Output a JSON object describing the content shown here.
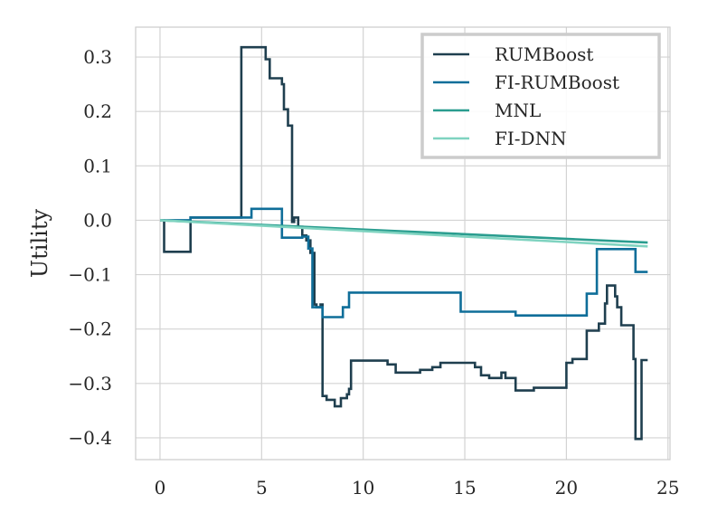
{
  "chart_data": {
    "type": "line",
    "title": "",
    "xlabel": "",
    "ylabel": "Utility",
    "xlim": [
      -1.2,
      25.1
    ],
    "ylim": [
      -0.44,
      0.355
    ],
    "grid": true,
    "legend_position": "top-right",
    "x_ticks": [
      0,
      5,
      10,
      15,
      20,
      25
    ],
    "x_tick_labels": [
      "0",
      "5",
      "10",
      "15",
      "20",
      "25"
    ],
    "y_ticks": [
      0.3,
      0.2,
      0.1,
      0.0,
      -0.1,
      -0.2,
      -0.3,
      -0.4
    ],
    "y_tick_labels": [
      "0.3",
      "0.2",
      "0.1",
      "0.0",
      "−0.1",
      "−0.2",
      "−0.3",
      "−0.4"
    ],
    "series": [
      {
        "name": "RUMBoost",
        "color": "#1f3f4f",
        "step": true,
        "points": [
          [
            0,
            0
          ],
          [
            0.2,
            -0.058
          ],
          [
            1.5,
            0.005
          ],
          [
            4.0,
            0.318
          ],
          [
            5.2,
            0.296
          ],
          [
            5.4,
            0.261
          ],
          [
            6.0,
            0.25
          ],
          [
            6.1,
            0.204
          ],
          [
            6.3,
            0.174
          ],
          [
            6.5,
            -0.003
          ],
          [
            6.6,
            0.005
          ],
          [
            6.8,
            -0.012
          ],
          [
            7.0,
            -0.028
          ],
          [
            7.2,
            -0.037
          ],
          [
            7.4,
            -0.06
          ],
          [
            7.6,
            -0.155
          ],
          [
            7.7,
            -0.16
          ],
          [
            7.9,
            -0.155
          ],
          [
            8.0,
            -0.323
          ],
          [
            8.2,
            -0.33
          ],
          [
            8.6,
            -0.342
          ],
          [
            8.9,
            -0.327
          ],
          [
            9.2,
            -0.32
          ],
          [
            9.3,
            -0.31
          ],
          [
            9.4,
            -0.258
          ],
          [
            11.2,
            -0.265
          ],
          [
            11.6,
            -0.28
          ],
          [
            12.8,
            -0.275
          ],
          [
            13.4,
            -0.27
          ],
          [
            13.8,
            -0.262
          ],
          [
            15.5,
            -0.27
          ],
          [
            15.8,
            -0.285
          ],
          [
            16.2,
            -0.29
          ],
          [
            16.8,
            -0.28
          ],
          [
            17.0,
            -0.29
          ],
          [
            17.5,
            -0.313
          ],
          [
            18.4,
            -0.308
          ],
          [
            20.0,
            -0.262
          ],
          [
            20.3,
            -0.255
          ],
          [
            21.0,
            -0.203
          ],
          [
            21.6,
            -0.19
          ],
          [
            21.9,
            -0.153
          ],
          [
            22.0,
            -0.12
          ],
          [
            22.4,
            -0.14
          ],
          [
            22.5,
            -0.16
          ],
          [
            22.7,
            -0.193
          ],
          [
            23.3,
            -0.255
          ],
          [
            23.4,
            -0.402
          ],
          [
            23.7,
            -0.257
          ],
          [
            24.0,
            -0.257
          ]
        ]
      },
      {
        "name": "FI-RUMBoost",
        "color": "#0f6e99",
        "step": true,
        "points": [
          [
            0,
            0
          ],
          [
            1.5,
            0.005
          ],
          [
            4.5,
            0.021
          ],
          [
            6.0,
            -0.032
          ],
          [
            7.0,
            -0.03
          ],
          [
            7.3,
            -0.052
          ],
          [
            7.5,
            -0.16
          ],
          [
            8.0,
            -0.178
          ],
          [
            9.0,
            -0.16
          ],
          [
            9.3,
            -0.133
          ],
          [
            14.8,
            -0.168
          ],
          [
            17.5,
            -0.175
          ],
          [
            21.0,
            -0.135
          ],
          [
            21.5,
            -0.053
          ],
          [
            23.4,
            -0.095
          ],
          [
            24.0,
            -0.095
          ]
        ]
      },
      {
        "name": "MNL",
        "color": "#2a9d8f",
        "step": false,
        "points": [
          [
            0,
            0
          ],
          [
            24.0,
            -0.041
          ]
        ]
      },
      {
        "name": "FI-DNN",
        "color": "#7fd3c0",
        "step": false,
        "points": [
          [
            0,
            0
          ],
          [
            24.0,
            -0.048
          ]
        ]
      }
    ]
  }
}
